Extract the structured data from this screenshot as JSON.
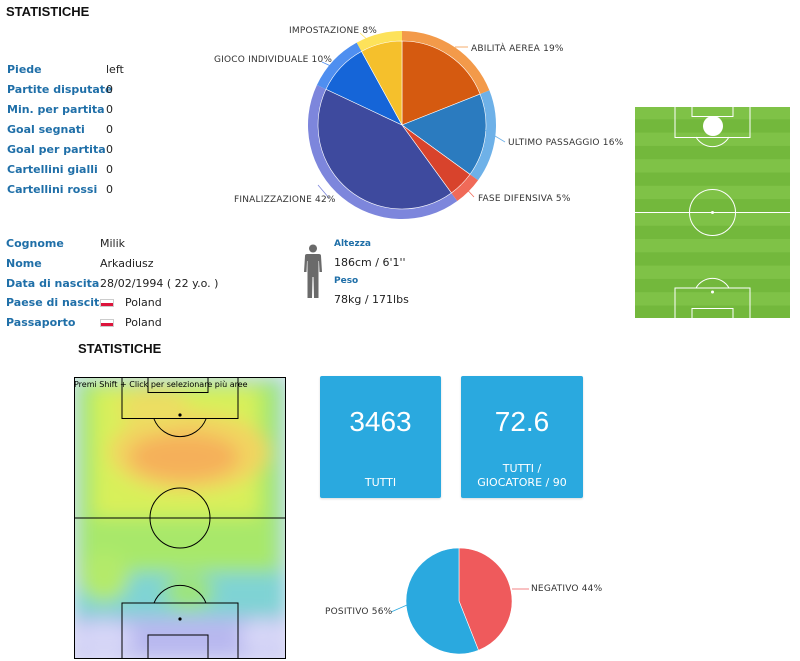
{
  "header": {
    "title": "STATISTICHE"
  },
  "player_stats": [
    {
      "label": "Piede",
      "value": "left"
    },
    {
      "label": "Partite disputate",
      "value": "0"
    },
    {
      "label": "Min. per partita",
      "value": "0"
    },
    {
      "label": "Goal segnati",
      "value": "0"
    },
    {
      "label": "Goal per partita",
      "value": "0"
    },
    {
      "label": "Cartellini gialli",
      "value": "0"
    },
    {
      "label": "Cartellini rossi",
      "value": "0"
    }
  ],
  "bio": {
    "surname_label": "Cognome",
    "surname": "Milik",
    "name_label": "Nome",
    "name": "Arkadiusz",
    "birth_label": "Data di nascita",
    "birth": "28/02/1994 ( 22 y.o. )",
    "country_label": "Paese di nascita",
    "country": "Poland",
    "passport_label": "Passaporto",
    "passport": "Poland"
  },
  "physical": {
    "height_label": "Altezza",
    "height": "186cm / 6'1''",
    "weight_label": "Peso",
    "weight": "78kg / 171lbs"
  },
  "section2": {
    "title": "STATISTICHE"
  },
  "heatmap": {
    "hint": "Premi Shift + Click per selezionare più aree"
  },
  "tiles": [
    {
      "value": "3463",
      "caption": "TUTTI"
    },
    {
      "value": "72.6",
      "caption": "TUTTI / GIOCATORE / 90"
    }
  ],
  "chart_data": [
    {
      "type": "pie",
      "slices": [
        {
          "label": "ABILITÀ AEREA 19%",
          "value": 19,
          "color": "#d55a10"
        },
        {
          "label": "ULTIMO PASSAGGIO 16%",
          "value": 16,
          "color": "#2b7bbf"
        },
        {
          "label": "FASE DIFENSIVA 5%",
          "value": 5,
          "color": "#d8432c"
        },
        {
          "label": "FINALIZZAZIONE 42%",
          "value": 42,
          "color": "#3e4a9e"
        },
        {
          "label": "GIOCO INDIVIDUALE 10%",
          "value": 10,
          "color": "#1565d8"
        },
        {
          "label": "IMPOSTAZIONE 8%",
          "value": 8,
          "color": "#f5c02c"
        }
      ],
      "ring_colors": [
        "#f39a4a",
        "#6eb1e8",
        "#f06a58",
        "#7d86dc",
        "#4f8ff0",
        "#fde25a"
      ]
    },
    {
      "type": "pie",
      "slices": [
        {
          "label": "NEGATIVO 44%",
          "value": 44,
          "color": "#ef5a5c"
        },
        {
          "label": "POSITIVO 56%",
          "value": 56,
          "color": "#2aa9df"
        }
      ]
    }
  ]
}
